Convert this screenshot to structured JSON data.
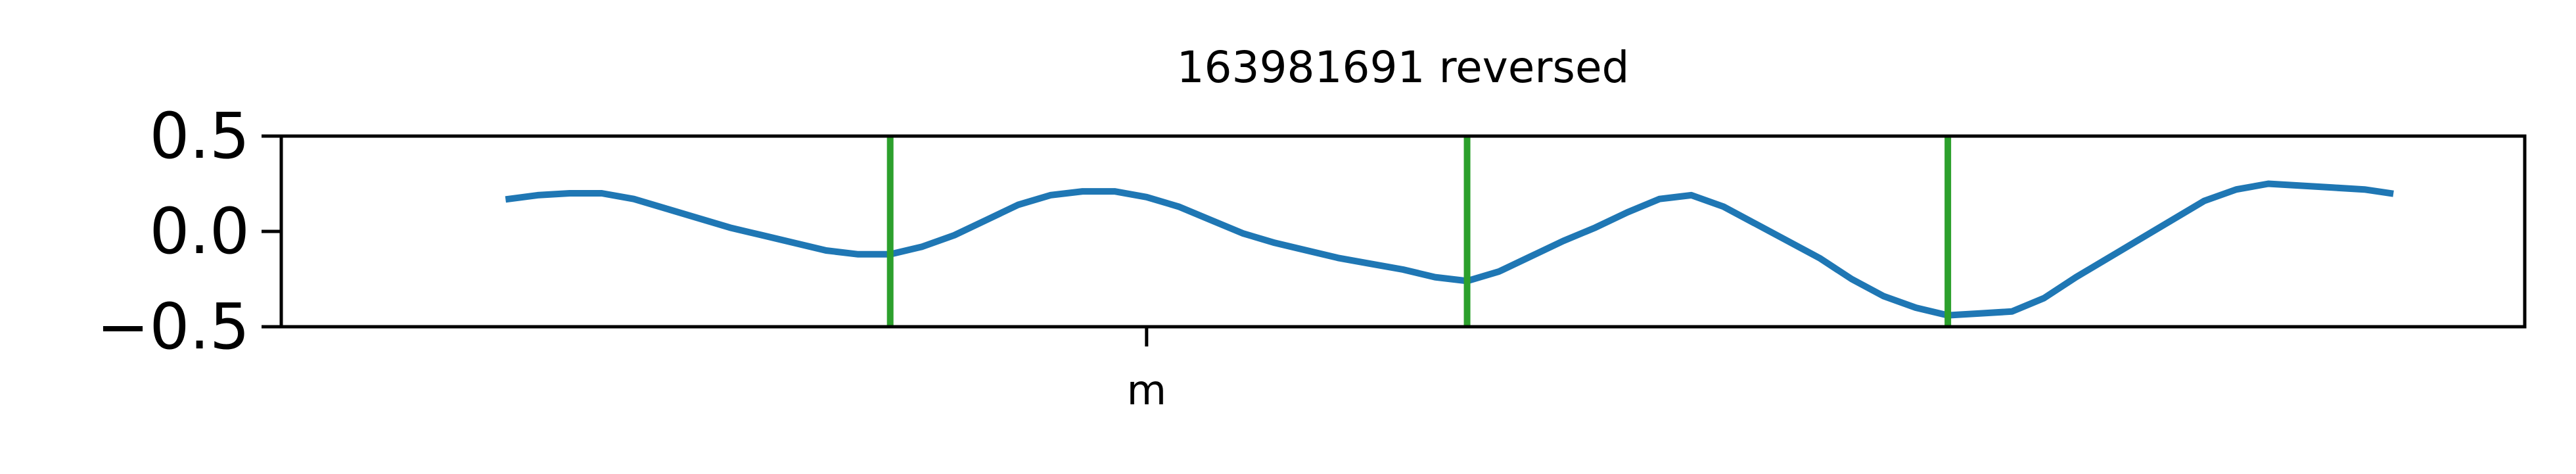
{
  "chart_data": {
    "type": "line",
    "title": "163981691 reversed",
    "xlabel": "",
    "ylabel": "",
    "ylim": [
      -0.5,
      0.5
    ],
    "y_ticks": [
      {
        "value": 0.5,
        "label": "0.5"
      },
      {
        "value": 0.0,
        "label": "0.0"
      },
      {
        "value": -0.5,
        "label": "−0.5"
      }
    ],
    "x_ticks": [
      {
        "value": 0.5,
        "label": "m"
      }
    ],
    "grid": false,
    "series": [
      {
        "color": "#1f77b4",
        "points": [
          [
            0.102,
            0.17
          ],
          [
            0.12,
            0.19
          ],
          [
            0.14,
            0.2
          ],
          [
            0.16,
            0.2
          ],
          [
            0.18,
            0.17
          ],
          [
            0.2,
            0.12
          ],
          [
            0.22,
            0.07
          ],
          [
            0.24,
            0.02
          ],
          [
            0.26,
            -0.02
          ],
          [
            0.28,
            -0.06
          ],
          [
            0.3,
            -0.1
          ],
          [
            0.32,
            -0.12
          ],
          [
            0.34,
            -0.12
          ],
          [
            0.36,
            -0.08
          ],
          [
            0.38,
            -0.02
          ],
          [
            0.4,
            0.06
          ],
          [
            0.42,
            0.14
          ],
          [
            0.44,
            0.19
          ],
          [
            0.46,
            0.21
          ],
          [
            0.48,
            0.21
          ],
          [
            0.5,
            0.18
          ],
          [
            0.52,
            0.13
          ],
          [
            0.54,
            0.06
          ],
          [
            0.56,
            -0.01
          ],
          [
            0.58,
            -0.06
          ],
          [
            0.6,
            -0.1
          ],
          [
            0.62,
            -0.14
          ],
          [
            0.64,
            -0.17
          ],
          [
            0.66,
            -0.2
          ],
          [
            0.68,
            -0.24
          ],
          [
            0.7,
            -0.26
          ],
          [
            0.72,
            -0.21
          ],
          [
            0.74,
            -0.13
          ],
          [
            0.76,
            -0.05
          ],
          [
            0.78,
            0.02
          ],
          [
            0.8,
            0.1
          ],
          [
            0.82,
            0.17
          ],
          [
            0.84,
            0.19
          ],
          [
            0.86,
            0.13
          ],
          [
            0.88,
            0.04
          ],
          [
            0.9,
            -0.05
          ],
          [
            0.92,
            -0.14
          ],
          [
            0.94,
            -0.25
          ],
          [
            0.96,
            -0.34
          ],
          [
            0.98,
            -0.4
          ],
          [
            1.0,
            -0.44
          ],
          [
            1.02,
            -0.43
          ],
          [
            1.04,
            -0.42
          ],
          [
            1.06,
            -0.35
          ],
          [
            1.08,
            -0.24
          ],
          [
            1.1,
            -0.14
          ],
          [
            1.12,
            -0.04
          ],
          [
            1.14,
            0.06
          ],
          [
            1.16,
            0.16
          ],
          [
            1.18,
            0.22
          ],
          [
            1.2,
            0.25
          ],
          [
            1.22,
            0.24
          ],
          [
            1.24,
            0.23
          ],
          [
            1.26,
            0.22
          ],
          [
            1.276,
            0.2
          ]
        ]
      }
    ],
    "vertical_lines": [
      {
        "x": 0.34,
        "color": "#2ca02c"
      },
      {
        "x": 0.7,
        "color": "#2ca02c"
      },
      {
        "x": 1.0,
        "color": "#2ca02c"
      }
    ],
    "xlim": [
      -0.04,
      1.36
    ]
  }
}
